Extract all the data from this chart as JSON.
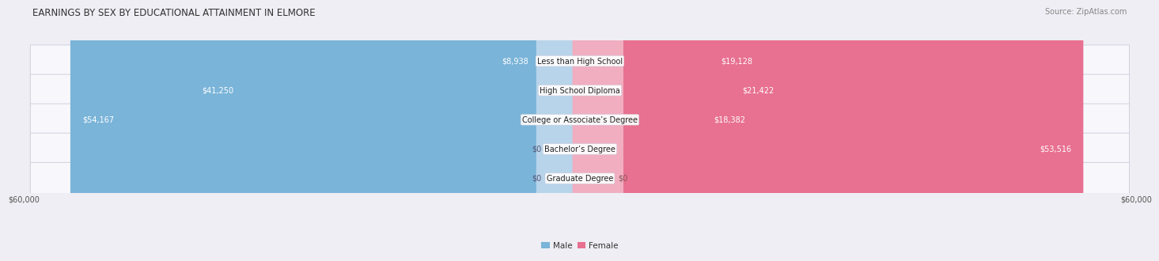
{
  "title": "EARNINGS BY SEX BY EDUCATIONAL ATTAINMENT IN ELMORE",
  "source": "Source: ZipAtlas.com",
  "categories": [
    "Less than High School",
    "High School Diploma",
    "College or Associate’s Degree",
    "Bachelor’s Degree",
    "Graduate Degree"
  ],
  "male_values": [
    8938,
    41250,
    54167,
    0,
    0
  ],
  "female_values": [
    19128,
    21422,
    18382,
    53516,
    0
  ],
  "max_val": 60000,
  "male_color": "#7ab4d8",
  "female_color": "#e87090",
  "male_stub_color": "#b8d4ea",
  "female_stub_color": "#f0aec0",
  "bg_color": "#eeeef4",
  "row_bg_color": "#f8f8fc",
  "row_border_color": "#d0d0e0",
  "title_fontsize": 8.5,
  "source_fontsize": 7,
  "bar_label_fontsize": 7,
  "cat_label_fontsize": 7,
  "axis_label_fontsize": 7,
  "legend_fontsize": 7.5
}
